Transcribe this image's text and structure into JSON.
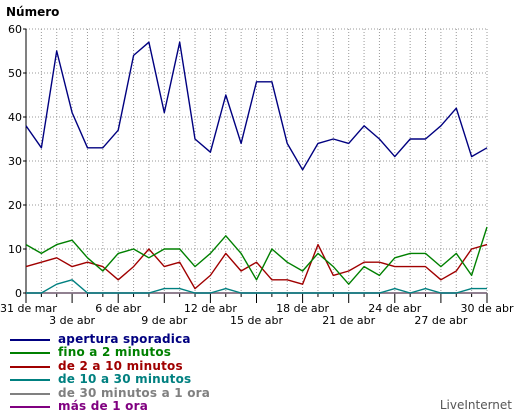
{
  "chart_data": {
    "type": "line",
    "ylabel": "Número",
    "ylim": [
      0,
      60
    ],
    "yticks": [
      "0",
      "10",
      "20",
      "30",
      "40",
      "50",
      "60"
    ],
    "xticks_top": [
      "31 de mar",
      "6 de abr",
      "12 de abr",
      "18 de abr",
      "24 de abr",
      "30 de abr"
    ],
    "xticks_bottom": [
      "3 de abr",
      "9 de abr",
      "15 de abr",
      "21 de abr",
      "27 de abr"
    ],
    "x": [
      "31 de mar",
      "1 de abr",
      "2 de abr",
      "3 de abr",
      "4 de abr",
      "5 de abr",
      "6 de abr",
      "7 de abr",
      "8 de abr",
      "9 de abr",
      "10 de abr",
      "11 de abr",
      "12 de abr",
      "13 de abr",
      "14 de abr",
      "15 de abr",
      "16 de abr",
      "17 de abr",
      "18 de abr",
      "19 de abr",
      "20 de abr",
      "21 de abr",
      "22 de abr",
      "23 de abr",
      "24 de abr",
      "25 de abr",
      "26 de abr",
      "27 de abr",
      "28 de abr",
      "29 de abr",
      "30 de abr"
    ],
    "grid": true,
    "series": [
      {
        "name": "apertura sporadica",
        "color": "#000080",
        "values": [
          38,
          33,
          55,
          41,
          33,
          33,
          37,
          54,
          57,
          41,
          57,
          35,
          32,
          45,
          34,
          48,
          48,
          34,
          28,
          34,
          35,
          34,
          38,
          35,
          31,
          35,
          35,
          38,
          42,
          31,
          33
        ]
      },
      {
        "name": "fino a 2 minutos",
        "color": "#008000",
        "values": [
          11,
          9,
          11,
          12,
          8,
          5,
          9,
          10,
          8,
          10,
          10,
          6,
          9,
          13,
          9,
          3,
          10,
          7,
          5,
          9,
          6,
          2,
          6,
          4,
          8,
          9,
          9,
          6,
          9,
          4,
          15
        ]
      },
      {
        "name": "de 2 a 10 minutos",
        "color": "#a00000",
        "values": [
          6,
          7,
          8,
          6,
          7,
          6,
          3,
          6,
          10,
          6,
          7,
          1,
          4,
          9,
          5,
          7,
          3,
          3,
          2,
          11,
          4,
          5,
          7,
          7,
          6,
          6,
          6,
          3,
          5,
          10,
          11
        ]
      },
      {
        "name": "de 10 a 30 minutos",
        "color": "#008080",
        "values": [
          0,
          0,
          2,
          3,
          0,
          0,
          0,
          0,
          0,
          1,
          1,
          0,
          0,
          1,
          0,
          0,
          0,
          0,
          0,
          0,
          0,
          0,
          0,
          0,
          1,
          0,
          1,
          0,
          0,
          1,
          1
        ]
      },
      {
        "name": "de 30 minutos a 1 ora",
        "color": "#808080",
        "values": [
          0,
          0,
          0,
          0,
          0,
          0,
          0,
          0,
          0,
          0,
          0,
          0,
          0,
          0,
          0,
          0,
          0,
          0,
          0,
          0,
          0,
          0,
          0,
          0,
          0,
          0,
          0,
          0,
          0,
          0,
          0
        ]
      },
      {
        "name": "más de 1 ora",
        "color": "#800080",
        "values": [
          0,
          0,
          0,
          0,
          0,
          0,
          0,
          0,
          0,
          0,
          0,
          0,
          0,
          0,
          0,
          0,
          0,
          0,
          0,
          0,
          0,
          0,
          0,
          0,
          0,
          0,
          0,
          0,
          0,
          0,
          0
        ]
      }
    ]
  },
  "credit": "LiveInternet"
}
